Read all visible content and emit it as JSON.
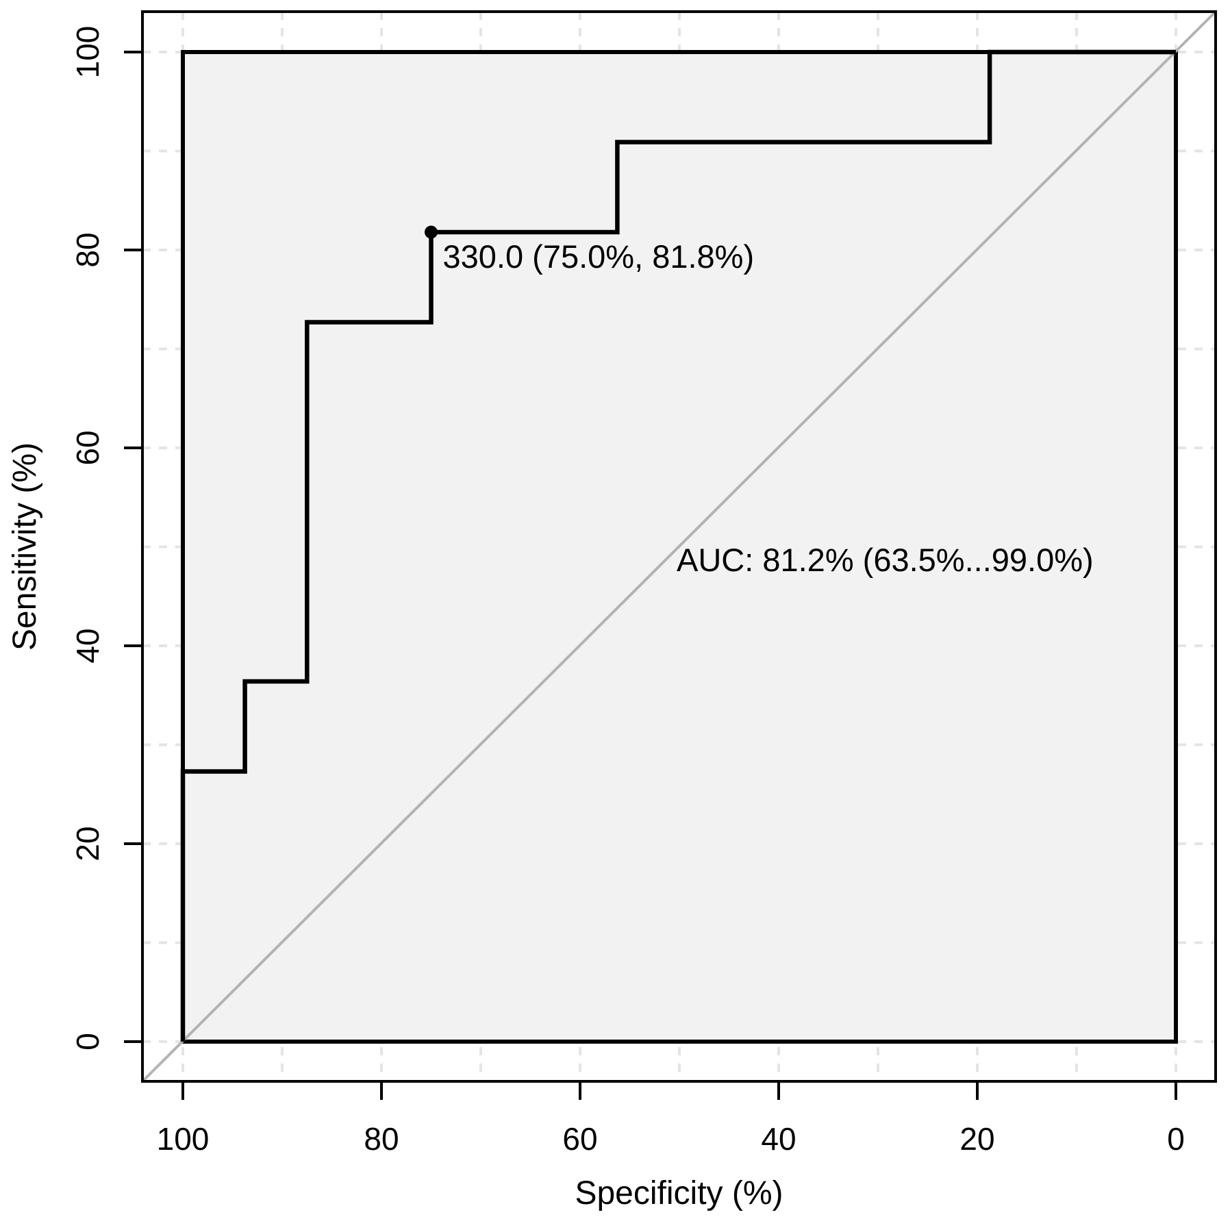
{
  "chart_data": {
    "type": "line",
    "subtype": "roc-step-curve",
    "title": "",
    "xlabel": "Specificity (%)",
    "ylabel": "Sensitivity (%)",
    "x_axis_reversed": true,
    "x_range": [
      100,
      0
    ],
    "y_range": [
      0,
      100
    ],
    "x_ticks": [
      100,
      80,
      60,
      40,
      20,
      0
    ],
    "y_ticks": [
      0,
      20,
      40,
      60,
      80,
      100
    ],
    "grid": {
      "shown": true,
      "style": "dashed",
      "interval": 10
    },
    "diagonal_reference_line": true,
    "legend": {
      "shown": false
    },
    "series": [
      {
        "name": "ROC curve",
        "points_spec_sens": [
          [
            100,
            0
          ],
          [
            100,
            27.3
          ],
          [
            93.75,
            27.3
          ],
          [
            93.75,
            36.4
          ],
          [
            87.5,
            36.4
          ],
          [
            87.5,
            72.7
          ],
          [
            75,
            72.7
          ],
          [
            75,
            81.8
          ],
          [
            56.25,
            81.8
          ],
          [
            56.25,
            90.9
          ],
          [
            18.75,
            90.9
          ],
          [
            18.75,
            100
          ],
          [
            0,
            100
          ]
        ]
      }
    ],
    "best_threshold": {
      "threshold": 330.0,
      "specificity_pct": 75.0,
      "sensitivity_pct": 81.8,
      "label": "330.0 (75.0%, 81.8%)"
    },
    "auc": {
      "value_pct": 81.2,
      "ci_low_pct": 63.5,
      "ci_high_pct": 99.0,
      "label": "AUC: 81.2% (63.5%...99.0%)"
    }
  },
  "colors": {
    "background": "#ffffff",
    "panel_fill": "#f2f2f2",
    "grid_line": "#e4e4e4",
    "diagonal_line": "#b3b3b3",
    "curve": "#000000",
    "box": "#000000",
    "text": "#000000"
  }
}
